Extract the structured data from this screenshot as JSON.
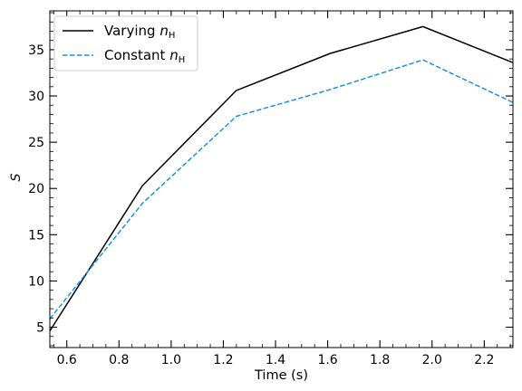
{
  "chart_data": {
    "type": "line",
    "xlabel": "Time (s)",
    "ylabel": "S",
    "xlim": [
      0.535,
      2.31
    ],
    "ylim": [
      2.8,
      39.2
    ],
    "x_ticks": [
      0.6,
      0.8,
      1.0,
      1.2,
      1.4,
      1.6,
      1.8,
      2.0,
      2.2
    ],
    "x_tick_labels": [
      "0.6",
      "0.8",
      "1.0",
      "1.2",
      "1.4",
      "1.6",
      "1.8",
      "2.0",
      "2.2"
    ],
    "y_ticks": [
      5,
      10,
      15,
      20,
      25,
      30,
      35
    ],
    "y_tick_labels": [
      "5",
      "10",
      "15",
      "20",
      "25",
      "30",
      "35"
    ],
    "legend_position": "top-left",
    "grid": false,
    "series": [
      {
        "name": "Varying n_H",
        "legend_prefix": "Varying",
        "legend_var": "n",
        "legend_sub": "H",
        "style": "solid",
        "color": "#000000",
        "x": [
          0.535,
          0.89,
          1.25,
          1.61,
          1.965,
          2.31
        ],
        "y": [
          4.6,
          20.3,
          30.6,
          34.6,
          37.5,
          33.6
        ]
      },
      {
        "name": "Constant n_H",
        "legend_prefix": "Constant",
        "legend_var": "n",
        "legend_sub": "H",
        "style": "dashed",
        "color": "#1f8fe6",
        "x": [
          0.535,
          0.89,
          1.25,
          1.61,
          1.965,
          2.31
        ],
        "y": [
          5.9,
          18.4,
          27.8,
          30.7,
          33.9,
          29.3
        ]
      }
    ]
  }
}
